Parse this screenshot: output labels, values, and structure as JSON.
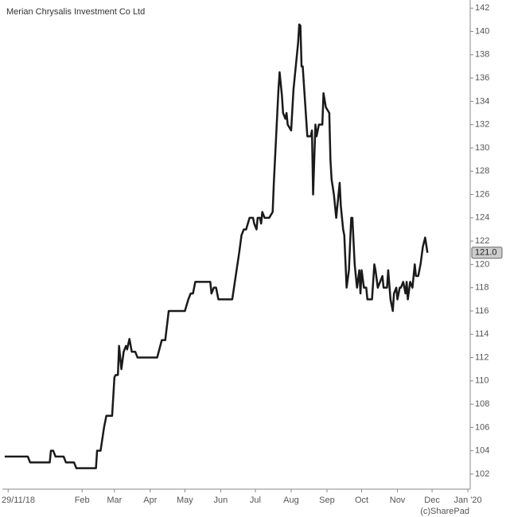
{
  "chart_data": {
    "type": "line",
    "title": "Merian Chrysalis Investment Co Ltd",
    "credit": "(c)SharePad",
    "last_price_label": "121.0",
    "color": "#1a1a1a",
    "x": [
      -3,
      17,
      19,
      36,
      37,
      39,
      41,
      48,
      50,
      57,
      59,
      76,
      77,
      80,
      83,
      85,
      90,
      92,
      93,
      95,
      96,
      98,
      100,
      102,
      103,
      105,
      107,
      110,
      112,
      129,
      133,
      136,
      139,
      153,
      156,
      158,
      160,
      162,
      175,
      176,
      178,
      180,
      182,
      194,
      197,
      200,
      202,
      204,
      206,
      209,
      212,
      213,
      215,
      216,
      218,
      219,
      220,
      222,
      226,
      229,
      230,
      232,
      234,
      235,
      237,
      238,
      240,
      241,
      242,
      245,
      247,
      249,
      251,
      252,
      253,
      254,
      255,
      257,
      259,
      262,
      263,
      264,
      266,
      267,
      269,
      272,
      273,
      275,
      278,
      279,
      280,
      282,
      284,
      287,
      288,
      290,
      291,
      293,
      295,
      297,
      298,
      300,
      302,
      304,
      305,
      306,
      308,
      310,
      311,
      315,
      317,
      318,
      320,
      322,
      324,
      325,
      328,
      329,
      331,
      333,
      334,
      336,
      337,
      339,
      340,
      342,
      344,
      345,
      346,
      348,
      350,
      352,
      353,
      355,
      357,
      359,
      361,
      363
    ],
    "values": [
      103.5,
      103.5,
      103,
      103,
      104,
      104,
      103.5,
      103.5,
      103,
      103,
      102.5,
      102.5,
      104,
      104,
      106,
      107,
      107,
      110.3,
      110.5,
      110.5,
      113,
      111,
      112.5,
      113,
      112.7,
      113.6,
      112.5,
      112.5,
      112,
      112,
      113.5,
      113.5,
      116,
      116,
      117,
      117.5,
      117.5,
      118.5,
      118.5,
      117.5,
      118,
      118,
      117,
      117,
      119,
      121,
      122.5,
      123,
      123,
      124,
      124,
      123.5,
      123,
      124,
      124,
      123.5,
      124.5,
      124,
      124,
      124.5,
      127,
      131,
      135,
      136.5,
      134.5,
      133,
      132.5,
      133,
      132,
      131.5,
      135,
      137,
      139,
      140.6,
      140.5,
      137,
      137,
      134,
      131,
      131,
      131.5,
      126,
      132,
      131,
      132,
      132,
      134.7,
      133.5,
      133,
      129,
      127.3,
      126,
      124,
      127,
      125,
      123,
      122.5,
      118,
      119.5,
      124,
      124,
      120,
      118,
      119.5,
      117.5,
      119.5,
      118,
      118,
      117,
      117,
      120,
      119.5,
      118,
      118.5,
      119,
      118,
      118,
      119.5,
      117,
      116,
      117.5,
      118,
      117,
      118,
      118,
      118.5,
      117.5,
      118.5,
      117,
      118.5,
      118,
      120,
      119,
      119,
      120,
      121.5,
      122.3,
      121
    ],
    "xlim": [
      -5,
      400
    ],
    "xticks": [
      {
        "value": 0,
        "label": "29/11/18"
      },
      {
        "value": 64,
        "label": "Feb"
      },
      {
        "value": 92,
        "label": "Mar"
      },
      {
        "value": 123,
        "label": "Apr"
      },
      {
        "value": 153,
        "label": "May"
      },
      {
        "value": 184,
        "label": "Jun"
      },
      {
        "value": 214,
        "label": "Jul"
      },
      {
        "value": 245,
        "label": "Aug"
      },
      {
        "value": 276,
        "label": "Sep"
      },
      {
        "value": 306,
        "label": "Oct"
      },
      {
        "value": 337,
        "label": "Nov"
      },
      {
        "value": 367,
        "label": "Dec"
      },
      {
        "value": 398,
        "label": "Jan '20"
      }
    ],
    "ylim": [
      100.7,
      142.7
    ],
    "yticks": [
      102,
      104,
      106,
      108,
      110,
      112,
      114,
      116,
      118,
      120,
      122,
      124,
      126,
      128,
      130,
      132,
      134,
      136,
      138,
      140,
      142
    ]
  }
}
